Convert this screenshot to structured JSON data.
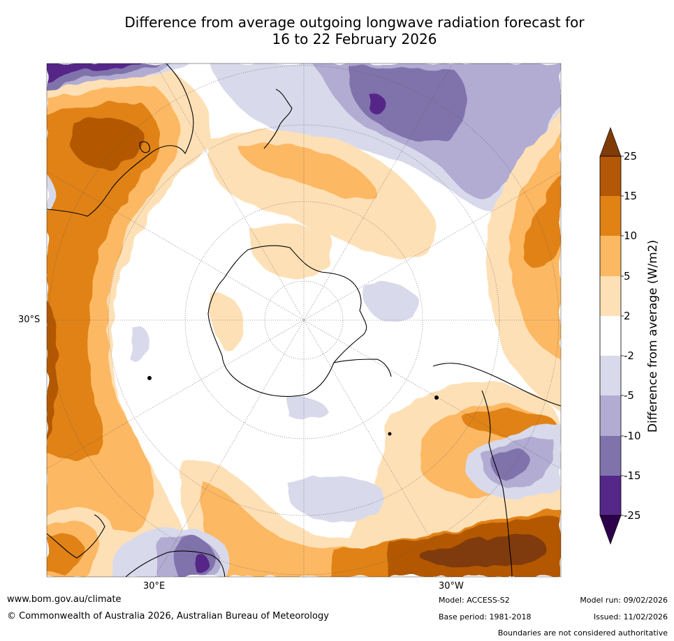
{
  "title": {
    "line1": "Difference from average outgoing longwave radiation forecast for",
    "line2": "16 to 22 February 2026"
  },
  "axis_labels": {
    "left_lat": "30°S",
    "bottom_east": "30°E",
    "bottom_west": "30°W"
  },
  "colorbar": {
    "label": "Difference from average (W/m2)",
    "ticks": [
      "25",
      "15",
      "10",
      "5",
      "2",
      "-2",
      "-5",
      "-10",
      "-15",
      "-25"
    ],
    "colors": {
      "over": "#7f3b08",
      "b15_25": "#b35806",
      "b10_15": "#e08214",
      "b5_10": "#fdb863",
      "b2_5": "#fee0b6",
      "neutral": "#ffffff",
      "bm2_m5": "#d8daeb",
      "bm5_m10": "#b2abd2",
      "bm10_m15": "#8073ac",
      "bm15_m25": "#542788",
      "under": "#2d004b"
    }
  },
  "footer": {
    "url": "www.bom.gov.au/climate",
    "copyright": "© Commonwealth of Australia 2026, Australian Bureau of Meteorology",
    "model": "Model: ACCESS-S2",
    "base_period": "Base period: 1981-2018",
    "model_run": "Model run: 09/02/2026",
    "issued": "Issued: 11/02/2026",
    "disclaimer": "Boundaries are not considered authoritative"
  }
}
